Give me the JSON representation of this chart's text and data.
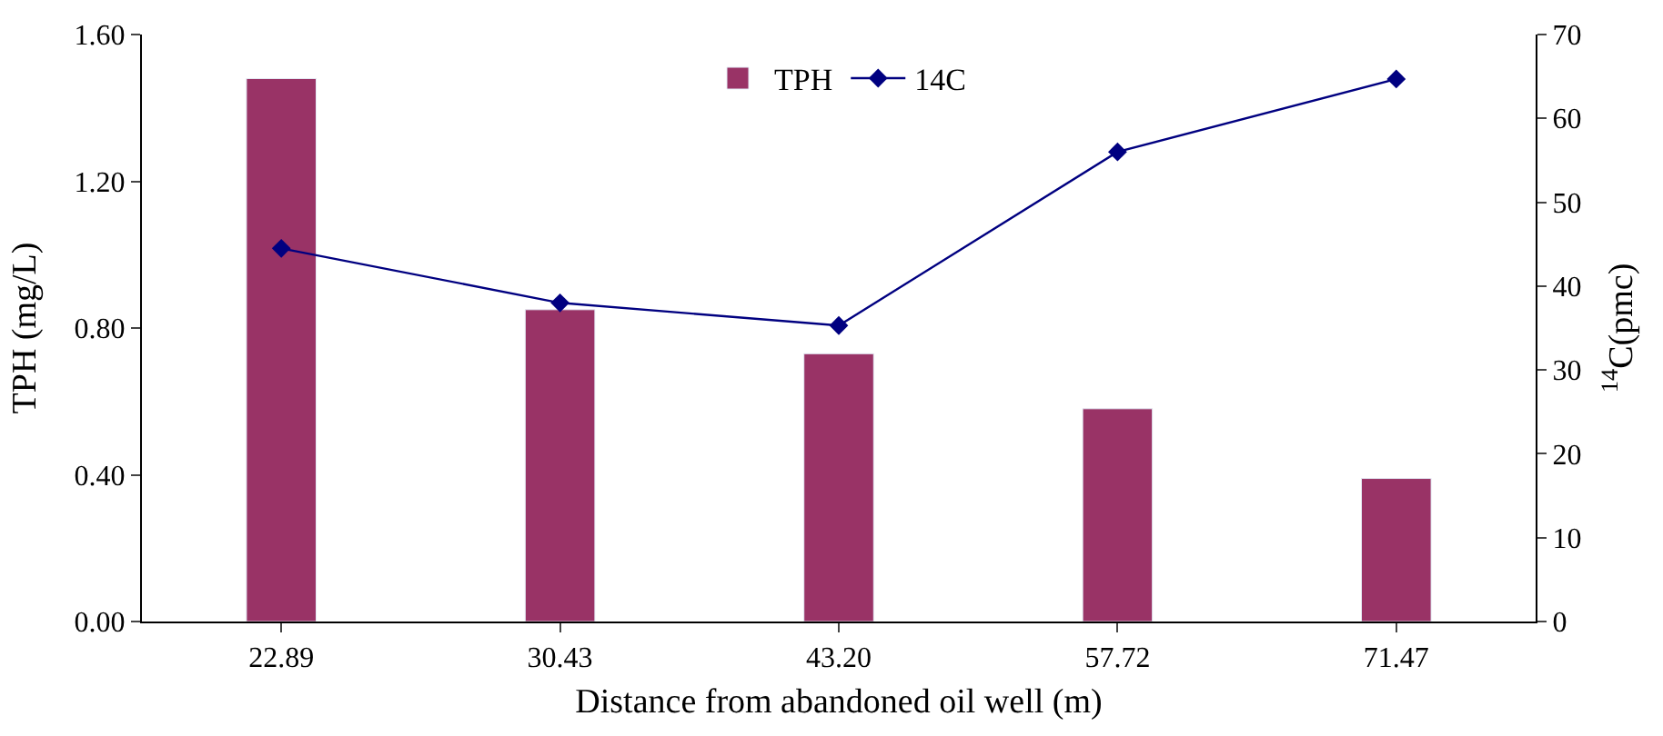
{
  "chart_data": {
    "type": "bar",
    "xlabel": "Distance from abandoned oil well (m)",
    "ylabel": "TPH (mg/L)",
    "y2label": "$^{14}$C(pmc)",
    "categories": [
      "22.89",
      "30.43",
      "43.20",
      "57.72",
      "71.47"
    ],
    "series": [
      {
        "name": "TPH",
        "color": "#993366",
        "values": [
          1.48,
          0.85,
          0.73,
          0.58,
          0.39
        ]
      },
      {
        "name": "14C",
        "type": "line",
        "axis": "y2",
        "color": "#000080",
        "marker": "diamond",
        "values": [
          44.5,
          38.0,
          35.3,
          56.0,
          64.7
        ]
      }
    ],
    "ylim": [
      0,
      1.6
    ],
    "yticks": [
      {
        "value": 0,
        "label": "0.00"
      },
      {
        "value": 0.4,
        "label": "0.40"
      },
      {
        "value": 0.8,
        "label": "0.80"
      },
      {
        "value": 1.2,
        "label": "1.20"
      },
      {
        "value": 1.6,
        "label": "1.60"
      }
    ],
    "y2lim": [
      0,
      70
    ],
    "y2ticks": [
      0,
      10,
      20,
      30,
      40,
      50,
      60,
      70
    ],
    "legend": "top"
  }
}
